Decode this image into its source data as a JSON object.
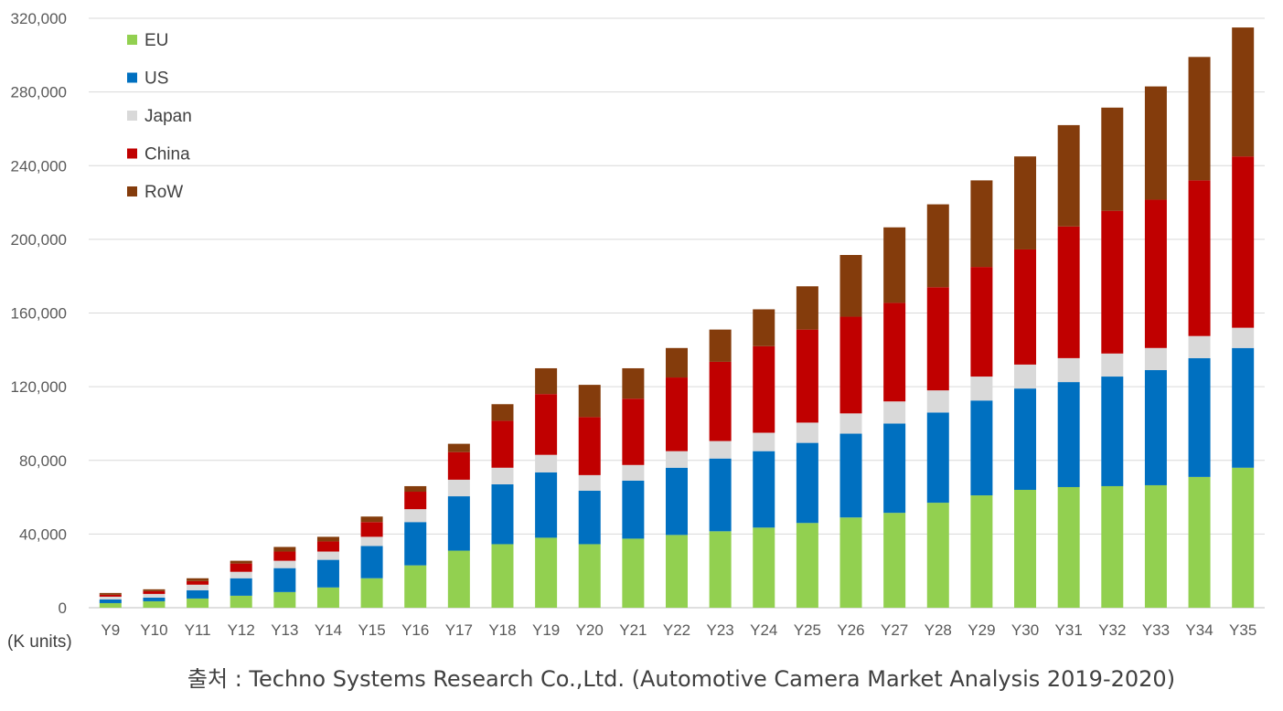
{
  "chart_data": {
    "type": "bar",
    "stacked": true,
    "title": "",
    "xlabel": "",
    "ylabel": "(K units)",
    "ylim": [
      0,
      320000
    ],
    "yticks": [
      0,
      40000,
      80000,
      120000,
      160000,
      200000,
      240000,
      280000,
      320000
    ],
    "ytick_labels": [
      "0",
      "40,000",
      "80,000",
      "120,000",
      "160,000",
      "200,000",
      "240,000",
      "280,000",
      "320,000"
    ],
    "grid": true,
    "legend_position": "top-left",
    "categories": [
      "Y9",
      "Y10",
      "Y11",
      "Y12",
      "Y13",
      "Y14",
      "Y15",
      "Y16",
      "Y17",
      "Y18",
      "Y19",
      "Y20",
      "Y21",
      "Y22",
      "Y23",
      "Y24",
      "Y25",
      "Y26",
      "Y27",
      "Y28",
      "Y29",
      "Y30",
      "Y31",
      "Y32",
      "Y33",
      "Y34",
      "Y35"
    ],
    "series": [
      {
        "name": "EU",
        "color": "#92d050",
        "values": [
          2500,
          3500,
          5000,
          6500,
          8500,
          11000,
          16000,
          23000,
          31000,
          34500,
          38000,
          34500,
          37500,
          39500,
          41500,
          43500,
          46000,
          49000,
          51500,
          57000,
          61000,
          64000,
          65500,
          66000,
          66500,
          71000,
          76000
        ]
      },
      {
        "name": "US",
        "color": "#0070c0",
        "values": [
          2000,
          2000,
          4500,
          9500,
          13000,
          15000,
          17500,
          23500,
          29500,
          32500,
          35500,
          29000,
          31500,
          36500,
          39500,
          41500,
          43500,
          45500,
          48500,
          49000,
          51500,
          55000,
          57000,
          59500,
          62500,
          64500,
          65000
        ]
      },
      {
        "name": "Japan",
        "color": "#d9d9d9",
        "values": [
          1500,
          2000,
          3000,
          3500,
          4000,
          4500,
          5000,
          7000,
          9000,
          9000,
          9500,
          8500,
          8500,
          9000,
          9500,
          10000,
          11000,
          11000,
          12000,
          12000,
          13000,
          13000,
          13000,
          12500,
          12000,
          12000,
          11000
        ]
      },
      {
        "name": "China",
        "color": "#c00000",
        "values": [
          1000,
          1500,
          2000,
          4500,
          5000,
          5500,
          8000,
          9500,
          15000,
          25500,
          33000,
          31500,
          36000,
          40000,
          43000,
          47000,
          50500,
          52500,
          53500,
          56000,
          59500,
          62500,
          71500,
          77500,
          80500,
          84500,
          93000
        ]
      },
      {
        "name": "RoW",
        "color": "#843c0c",
        "values": [
          1000,
          1000,
          1500,
          1500,
          2500,
          2500,
          3000,
          3000,
          4500,
          9000,
          14000,
          17500,
          16500,
          16000,
          17500,
          20000,
          23500,
          33500,
          41000,
          45000,
          47000,
          50500,
          55000,
          56000,
          61500,
          67000,
          70000
        ]
      }
    ]
  },
  "source_text": "출처 : Techno Systems Research Co.,Ltd. (Automotive Camera Market Analysis 2019-2020)"
}
